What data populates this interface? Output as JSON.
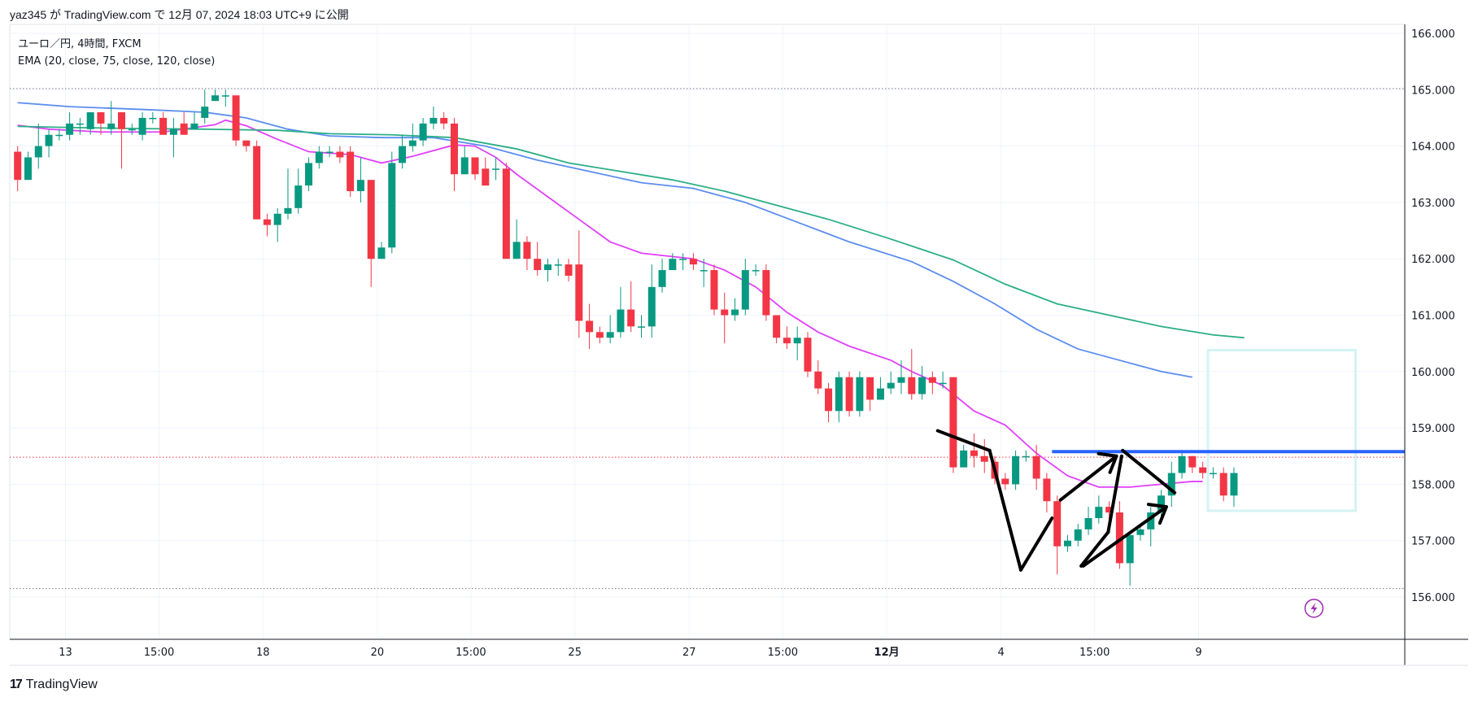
{
  "header": {
    "publish_text": "yaz345 が TradingView.com で 12月 07, 2024 18:03 UTC+9 に公開"
  },
  "legend": {
    "symbol_line": "ユーロ／円, 4時間, FXCM",
    "indicator_line": "EMA (20, close, 75, close, 120, close)"
  },
  "footer": {
    "brand": "TradingView",
    "logo_text": "17"
  },
  "chart_data": {
    "type": "candlestick",
    "title": "ユーロ／円, 4時間, FXCM",
    "y_ticks": [
      "166.000",
      "165.000",
      "164.000",
      "163.000",
      "162.000",
      "161.000",
      "160.000",
      "159.000",
      "158.000",
      "157.000",
      "156.000"
    ],
    "y_tick_values": [
      166,
      165,
      164,
      163,
      162,
      161,
      160,
      159,
      158,
      157,
      156
    ],
    "ylim": [
      155.3,
      166.35
    ],
    "x_tick_labels": [
      "13",
      "15:00",
      "18",
      "20",
      "15:00",
      "25",
      "27",
      "15:00",
      "12月",
      "4",
      "15:00",
      "9"
    ],
    "x_tick_bold": [
      false,
      false,
      false,
      false,
      false,
      false,
      false,
      false,
      true,
      false,
      false,
      false
    ],
    "x_tick_bar_index": [
      4.6,
      13.6,
      23.6,
      34.6,
      43.6,
      53.6,
      64.6,
      73.6,
      83.6,
      94.6,
      103.6,
      113.6
    ],
    "n_slots": 123,
    "grid": true,
    "reference_lines": [
      {
        "value": 165.02,
        "style": "dotted",
        "color": "#787b86"
      },
      {
        "value": 158.48,
        "style": "dotted",
        "color": "#f23645"
      },
      {
        "value": 156.15,
        "style": "dotted",
        "color": "#787b86"
      }
    ],
    "horizontal_ray": {
      "value": 158.58,
      "from_bar": 99.5,
      "color": "#2962ff"
    },
    "candle_colors": {
      "up": "#089981",
      "down": "#f23645"
    },
    "candles": [
      [
        163.9,
        163.4,
        163.2,
        164.0
      ],
      [
        163.4,
        163.8,
        163.4,
        163.9
      ],
      [
        163.8,
        164.0,
        163.6,
        164.4
      ],
      [
        164.0,
        164.2,
        163.8,
        164.3
      ],
      [
        164.2,
        164.2,
        164.1,
        164.3
      ],
      [
        164.2,
        164.4,
        164.1,
        164.6
      ],
      [
        164.4,
        164.4,
        164.2,
        164.5
      ],
      [
        164.3,
        164.6,
        164.2,
        164.6
      ],
      [
        164.6,
        164.4,
        164.2,
        164.6
      ],
      [
        164.3,
        164.4,
        164.2,
        164.8
      ],
      [
        164.6,
        164.3,
        163.6,
        164.6
      ],
      [
        164.3,
        164.3,
        164.2,
        164.4
      ],
      [
        164.2,
        164.5,
        164.1,
        164.6
      ],
      [
        164.5,
        164.5,
        164.4,
        164.6
      ],
      [
        164.5,
        164.2,
        164.2,
        164.6
      ],
      [
        164.2,
        164.3,
        163.8,
        164.5
      ],
      [
        164.4,
        164.2,
        164.2,
        164.6
      ],
      [
        164.3,
        164.4,
        164.3,
        164.6
      ],
      [
        164.5,
        164.7,
        164.4,
        165.0
      ],
      [
        164.8,
        164.9,
        164.8,
        165.0
      ],
      [
        164.9,
        164.9,
        164.7,
        165.0
      ],
      [
        164.9,
        164.1,
        164.0,
        164.9
      ],
      [
        164.1,
        164.0,
        163.9,
        164.1
      ],
      [
        164.0,
        162.7,
        162.7,
        164.1
      ],
      [
        162.7,
        162.6,
        162.4,
        162.8
      ],
      [
        162.6,
        162.8,
        162.3,
        162.9
      ],
      [
        162.8,
        162.9,
        162.7,
        163.6
      ],
      [
        162.9,
        163.3,
        162.8,
        163.6
      ],
      [
        163.3,
        163.7,
        163.2,
        163.8
      ],
      [
        163.7,
        163.9,
        163.6,
        164.0
      ],
      [
        163.9,
        163.9,
        163.8,
        164.0
      ],
      [
        163.9,
        163.8,
        163.7,
        164.0
      ],
      [
        163.9,
        163.2,
        163.1,
        164.0
      ],
      [
        163.2,
        163.4,
        163.0,
        163.8
      ],
      [
        163.4,
        162.0,
        161.5,
        163.4
      ],
      [
        162.0,
        162.2,
        162.0,
        162.3
      ],
      [
        162.2,
        163.7,
        162.1,
        163.9
      ],
      [
        163.7,
        164.0,
        163.6,
        164.2
      ],
      [
        164.0,
        164.1,
        163.9,
        164.4
      ],
      [
        164.1,
        164.4,
        164.0,
        164.5
      ],
      [
        164.4,
        164.5,
        164.3,
        164.7
      ],
      [
        164.5,
        164.4,
        164.3,
        164.6
      ],
      [
        164.4,
        163.5,
        163.2,
        164.5
      ],
      [
        163.5,
        163.8,
        163.5,
        164.0
      ],
      [
        163.8,
        163.5,
        163.4,
        163.8
      ],
      [
        163.6,
        163.3,
        163.3,
        163.8
      ],
      [
        163.6,
        163.6,
        163.4,
        163.8
      ],
      [
        163.6,
        162.0,
        162.0,
        163.7
      ],
      [
        162.0,
        162.3,
        162.0,
        162.7
      ],
      [
        162.3,
        162.0,
        161.8,
        162.4
      ],
      [
        162.0,
        161.8,
        161.7,
        162.3
      ],
      [
        161.8,
        161.9,
        161.6,
        162.0
      ],
      [
        161.9,
        161.9,
        161.7,
        162.0
      ],
      [
        161.9,
        161.7,
        161.6,
        162.0
      ],
      [
        161.9,
        160.9,
        160.6,
        162.5
      ],
      [
        160.9,
        160.7,
        160.4,
        161.2
      ],
      [
        160.7,
        160.6,
        160.5,
        160.8
      ],
      [
        160.6,
        160.7,
        160.5,
        161.0
      ],
      [
        160.7,
        161.1,
        160.6,
        161.5
      ],
      [
        161.1,
        160.8,
        160.7,
        161.6
      ],
      [
        160.8,
        160.8,
        160.6,
        161.0
      ],
      [
        160.8,
        161.5,
        160.6,
        161.9
      ],
      [
        161.5,
        161.8,
        161.4,
        162.0
      ],
      [
        161.8,
        162.0,
        161.8,
        162.1
      ],
      [
        162.0,
        162.0,
        161.8,
        162.1
      ],
      [
        162.0,
        161.9,
        161.8,
        162.1
      ],
      [
        161.8,
        161.8,
        161.5,
        162.0
      ],
      [
        161.8,
        161.1,
        161.0,
        161.9
      ],
      [
        161.1,
        161.0,
        160.5,
        161.4
      ],
      [
        161.0,
        161.1,
        160.9,
        161.3
      ],
      [
        161.1,
        161.8,
        161.0,
        162.0
      ],
      [
        161.8,
        161.8,
        161.7,
        161.9
      ],
      [
        161.8,
        161.0,
        160.9,
        161.9
      ],
      [
        161.0,
        160.6,
        160.5,
        161.0
      ],
      [
        160.6,
        160.5,
        160.4,
        160.8
      ],
      [
        160.5,
        160.6,
        160.2,
        160.8
      ],
      [
        160.6,
        160.0,
        159.9,
        160.7
      ],
      [
        160.0,
        159.7,
        159.6,
        160.2
      ],
      [
        159.7,
        159.3,
        159.1,
        159.8
      ],
      [
        159.3,
        159.9,
        159.1,
        160.0
      ],
      [
        159.9,
        159.3,
        159.2,
        160.0
      ],
      [
        159.3,
        159.9,
        159.2,
        160.0
      ],
      [
        159.9,
        159.5,
        159.3,
        159.9
      ],
      [
        159.5,
        159.7,
        159.5,
        159.9
      ],
      [
        159.7,
        159.8,
        159.6,
        160.0
      ],
      [
        159.8,
        159.9,
        159.6,
        160.2
      ],
      [
        159.9,
        159.6,
        159.5,
        160.4
      ],
      [
        159.6,
        159.9,
        159.5,
        160.1
      ],
      [
        159.9,
        159.8,
        159.6,
        160.0
      ],
      [
        159.8,
        159.8,
        159.7,
        160.0
      ],
      [
        159.9,
        158.3,
        158.2,
        159.9
      ],
      [
        158.3,
        158.6,
        158.3,
        158.7
      ],
      [
        158.6,
        158.5,
        158.3,
        158.9
      ],
      [
        158.5,
        158.4,
        158.2,
        158.8
      ],
      [
        158.4,
        158.1,
        158.0,
        158.5
      ],
      [
        158.1,
        158.0,
        157.9,
        158.2
      ],
      [
        158.0,
        158.5,
        157.9,
        158.6
      ],
      [
        158.5,
        158.5,
        158.4,
        158.6
      ],
      [
        158.5,
        158.1,
        157.9,
        158.7
      ],
      [
        158.1,
        157.7,
        157.5,
        158.2
      ],
      [
        157.7,
        156.9,
        156.4,
        157.8
      ],
      [
        156.9,
        157.0,
        156.8,
        157.1
      ],
      [
        157.0,
        157.2,
        156.9,
        157.3
      ],
      [
        157.2,
        157.4,
        157.1,
        157.6
      ],
      [
        157.4,
        157.6,
        157.3,
        157.8
      ],
      [
        157.6,
        157.5,
        157.3,
        157.7
      ],
      [
        157.5,
        156.6,
        156.5,
        157.7
      ],
      [
        156.6,
        157.1,
        156.2,
        157.1
      ],
      [
        157.1,
        157.2,
        157.0,
        157.3
      ],
      [
        157.2,
        157.5,
        156.9,
        157.6
      ],
      [
        157.5,
        157.8,
        157.4,
        157.9
      ],
      [
        157.8,
        158.2,
        157.6,
        158.4
      ],
      [
        158.2,
        158.5,
        158.1,
        158.6
      ],
      [
        158.5,
        158.3,
        158.2,
        158.5
      ],
      [
        158.3,
        158.2,
        158.1,
        158.4
      ],
      [
        158.2,
        158.2,
        158.1,
        158.3
      ],
      [
        158.2,
        157.8,
        157.7,
        158.3
      ],
      [
        157.8,
        158.2,
        157.6,
        158.3
      ]
    ],
    "ema_series": [
      {
        "name": "EMA 20",
        "color": "#e040fb",
        "values": [
          [
            0,
            164.37
          ],
          [
            3,
            164.3
          ],
          [
            8,
            164.25
          ],
          [
            14,
            164.25
          ],
          [
            19,
            164.38
          ],
          [
            20,
            164.46
          ],
          [
            22,
            164.36
          ],
          [
            25,
            164.12
          ],
          [
            28,
            163.9
          ],
          [
            32,
            163.85
          ],
          [
            35,
            163.7
          ],
          [
            38,
            163.82
          ],
          [
            42,
            164.02
          ],
          [
            44,
            164.0
          ],
          [
            46,
            163.8
          ],
          [
            48,
            163.5
          ],
          [
            51,
            163.1
          ],
          [
            54,
            162.7
          ],
          [
            57,
            162.3
          ],
          [
            60,
            162.1
          ],
          [
            65,
            162.0
          ],
          [
            68,
            161.8
          ],
          [
            71,
            161.5
          ],
          [
            74,
            161.05
          ],
          [
            77,
            160.7
          ],
          [
            80,
            160.45
          ],
          [
            84,
            160.2
          ],
          [
            86,
            160.0
          ],
          [
            89,
            159.75
          ],
          [
            92,
            159.3
          ],
          [
            95,
            159.05
          ],
          [
            98,
            158.55
          ],
          [
            101,
            158.15
          ],
          [
            104,
            157.95
          ],
          [
            107,
            157.95
          ],
          [
            110,
            158.0
          ],
          [
            113,
            158.05
          ],
          [
            114,
            158.05
          ]
        ]
      },
      {
        "name": "EMA 75",
        "color": "#5b8def",
        "values": [
          [
            0,
            164.77
          ],
          [
            5,
            164.7
          ],
          [
            12,
            164.65
          ],
          [
            18,
            164.6
          ],
          [
            22,
            164.5
          ],
          [
            26,
            164.3
          ],
          [
            30,
            164.18
          ],
          [
            35,
            164.15
          ],
          [
            40,
            164.15
          ],
          [
            45,
            164.0
          ],
          [
            50,
            163.75
          ],
          [
            55,
            163.55
          ],
          [
            60,
            163.35
          ],
          [
            65,
            163.25
          ],
          [
            70,
            163.0
          ],
          [
            75,
            162.65
          ],
          [
            80,
            162.3
          ],
          [
            86,
            161.95
          ],
          [
            90,
            161.6
          ],
          [
            94,
            161.2
          ],
          [
            98,
            160.75
          ],
          [
            102,
            160.4
          ],
          [
            106,
            160.2
          ],
          [
            108,
            160.1
          ],
          [
            110,
            160.0
          ],
          [
            113,
            159.9
          ]
        ]
      },
      {
        "name": "EMA 120",
        "color": "#2bae86",
        "values": [
          [
            0,
            164.35
          ],
          [
            5,
            164.33
          ],
          [
            12,
            164.31
          ],
          [
            18,
            164.3
          ],
          [
            25,
            164.28
          ],
          [
            30,
            164.22
          ],
          [
            36,
            164.2
          ],
          [
            42,
            164.15
          ],
          [
            48,
            163.95
          ],
          [
            53,
            163.7
          ],
          [
            58,
            163.55
          ],
          [
            63,
            163.4
          ],
          [
            68,
            163.2
          ],
          [
            73,
            162.95
          ],
          [
            78,
            162.7
          ],
          [
            84,
            162.35
          ],
          [
            90,
            161.98
          ],
          [
            95,
            161.55
          ],
          [
            100,
            161.2
          ],
          [
            105,
            161.0
          ],
          [
            110,
            160.8
          ],
          [
            115,
            160.65
          ],
          [
            118,
            160.6
          ]
        ]
      }
    ],
    "drawings": {
      "trend_lines": [
        [
          [
            88.5,
            158.95
          ],
          [
            93.5,
            158.6
          ]
        ],
        [
          [
            93.5,
            158.6
          ],
          [
            96.5,
            156.48
          ]
        ],
        [
          [
            96.5,
            156.48
          ],
          [
            99.5,
            157.4
          ]
        ],
        [
          [
            100.3,
            157.72
          ],
          [
            105.7,
            158.5
          ]
        ],
        [
          [
            102.3,
            156.55
          ],
          [
            104.9,
            157.15
          ]
        ],
        [
          [
            104.9,
            157.15
          ],
          [
            106.2,
            158.5
          ]
        ],
        [
          [
            106.3,
            158.6
          ],
          [
            111.3,
            157.85
          ]
        ],
        [
          [
            102.5,
            156.55
          ],
          [
            110.5,
            157.6
          ]
        ]
      ],
      "arrowheads": [
        [
          105.7,
          158.5
        ],
        [
          110.5,
          157.6
        ]
      ],
      "rectangle": {
        "from_bar": 114.5,
        "to_bar": 128.7,
        "top": 160.38,
        "bottom": 157.53,
        "color": "#d4f3f5"
      },
      "lightning_marker": {
        "bar": 124.7,
        "value": 155.8,
        "color": "#9c27b0"
      }
    }
  }
}
